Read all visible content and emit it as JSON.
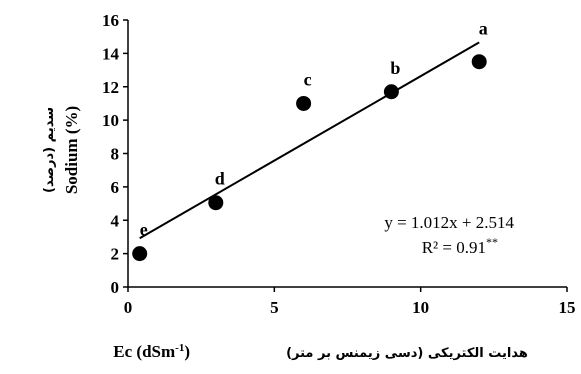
{
  "chart_data": {
    "type": "scatter",
    "x": [
      0.4,
      3,
      6,
      9,
      12
    ],
    "y": [
      2.0,
      5.05,
      11.0,
      11.7,
      13.5
    ],
    "point_labels": [
      "e",
      "d",
      "c",
      "b",
      "a"
    ],
    "xlim": [
      0,
      15
    ],
    "ylim": [
      0,
      16
    ],
    "x_ticks": [
      0,
      5,
      10,
      15
    ],
    "y_ticks": [
      0,
      2,
      4,
      6,
      8,
      10,
      12,
      14,
      16
    ],
    "trendline": {
      "slope": 1.012,
      "intercept": 2.514,
      "x_from": 0.4,
      "x_to": 12
    },
    "equation": "y = 1.012x + 2.514",
    "r_squared": "R² = 0.91",
    "significance": "**",
    "xlabel": "Ec (dSm",
    "xlabel_superscript": "-1",
    "xlabel_close": ")",
    "xlabel_persian": "هدایت الکتریکی (دسی زیمنس بر متر)",
    "ylabel": "Sodium (%)",
    "ylabel_persian": "سدیم (درصد)",
    "grid": false,
    "marker_color": "#000000"
  }
}
